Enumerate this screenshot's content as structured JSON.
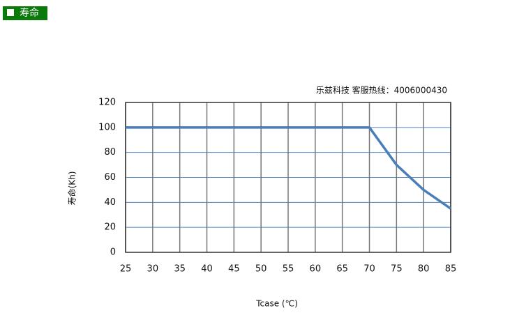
{
  "header": {
    "title": "寿命"
  },
  "chart_data": {
    "type": "line",
    "annotation": "乐兹科技 客服热线：4006000430",
    "y_label": "寿命(Kh)",
    "x_label": "Tcase (℃)",
    "x": [
      25,
      30,
      35,
      40,
      45,
      50,
      55,
      60,
      65,
      70,
      75,
      80,
      85
    ],
    "series": [
      {
        "color": "#4a7ebb",
        "values": [
          100,
          100,
          100,
          100,
          100,
          100,
          100,
          100,
          100,
          100,
          70,
          50,
          35
        ]
      }
    ],
    "xlim": [
      25,
      85
    ],
    "ylim": [
      0,
      120
    ],
    "xticks": [
      25,
      30,
      35,
      40,
      45,
      50,
      55,
      60,
      65,
      70,
      75,
      80,
      85
    ],
    "yticks": [
      0,
      20,
      40,
      60,
      80,
      100,
      120
    ],
    "grid": true
  }
}
